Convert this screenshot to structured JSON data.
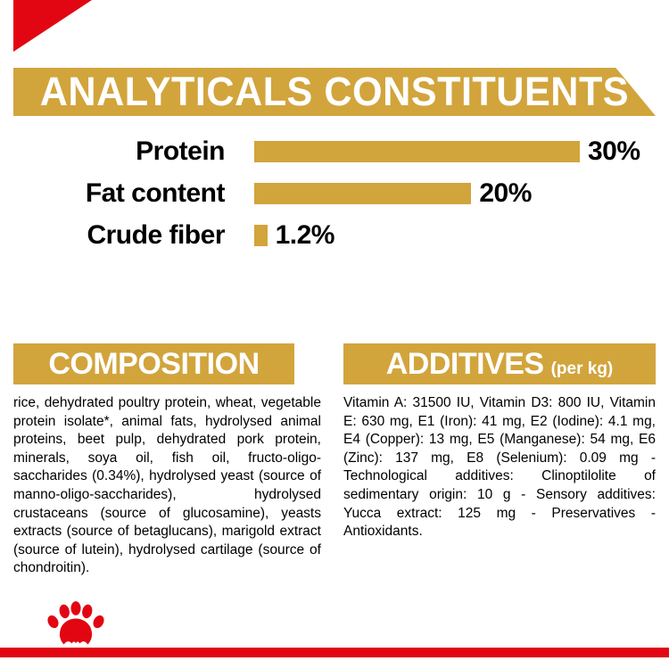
{
  "colors": {
    "gold": "#d2a43c",
    "red": "#e20613",
    "banner_text": "#ffffff",
    "body_text": "#000000"
  },
  "chart_data": {
    "type": "bar",
    "orientation": "horizontal",
    "title": "ANALYTICALS CONSTITUENTS",
    "categories": [
      "Protein",
      "Fat content",
      "Crude fiber"
    ],
    "values": [
      30,
      20,
      1.2
    ],
    "value_labels": [
      "30%",
      "20%",
      "1.2%"
    ],
    "xlim": [
      0,
      30
    ],
    "grid": false,
    "legend": false,
    "bar_color": "#d2a43c"
  },
  "composition": {
    "heading": "COMPOSITION",
    "body": "rice, dehydrated poultry protein, wheat, vegetable protein isolate*, animal fats, hydrolysed animal proteins, beet pulp, dehydrated pork protein, minerals, soya oil, fish oil, fructo-oligo-saccharides (0.34%), hydrolysed yeast (source of manno-oligo-saccharides), hydrolysed crustaceans (source of glucosamine), yeasts extracts (source of betaglucans), marigold extract (source of lutein), hydrolysed cartilage (source of chondroitin)."
  },
  "additives": {
    "heading": "ADDITIVES",
    "unit": "(per kg)",
    "body": "Vitamin A: 31500 IU, Vitamin D3: 800 IU, Vitamin E: 630 mg, E1 (Iron): 41 mg, E2 (Iodine): 4.1 mg, E4 (Copper): 13 mg, E5 (Manganese): 54 mg, E6 (Zinc): 137 mg, E8 (Selenium): 0.09 mg - Technological additives: Clinoptilolite of sedimentary origin: 10 g - Sensory additives: Yucca extract: 125 mg - Preservatives - Antioxidants."
  },
  "footer": {
    "logo": "paw-logo"
  }
}
